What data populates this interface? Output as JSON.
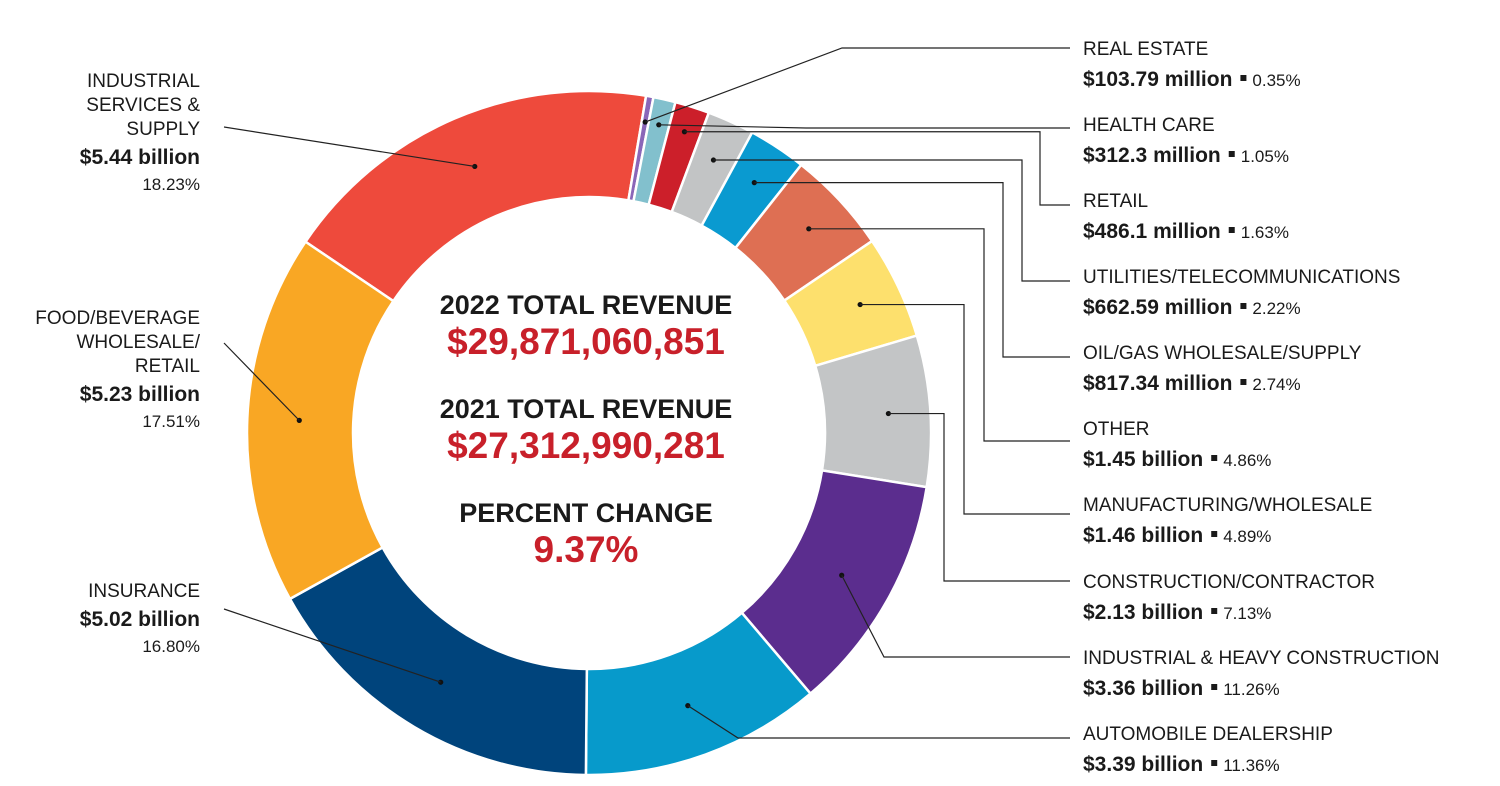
{
  "center": {
    "rev2022_label": "2022 TOTAL REVENUE",
    "rev2022_value": "$29,871,060,851",
    "rev2021_label": "2021 TOTAL REVENUE",
    "rev2021_value": "$27,312,990,281",
    "change_label": "PERCENT CHANGE",
    "change_value": "9.37%"
  },
  "chart_data": {
    "type": "pie",
    "style": "donut",
    "direction": "clockwise",
    "legend": "none",
    "slices": [
      {
        "name": "INDUSTRIAL SERVICES & SUPPLY",
        "name_lines": [
          "INDUSTRIAL",
          "SERVICES &",
          "SUPPLY"
        ],
        "value_text": "$5.44 billion",
        "percent": 18.23,
        "percent_text": "18.23%",
        "color": "#ee4a3c"
      },
      {
        "name": "REAL ESTATE",
        "value_text": "$103.79 million",
        "percent": 0.35,
        "percent_text": "0.35%",
        "color": "#8a66b8"
      },
      {
        "name": "HEALTH CARE",
        "value_text": "$312.3 million",
        "percent": 1.05,
        "percent_text": "1.05%",
        "color": "#82c0cd"
      },
      {
        "name": "RETAIL",
        "value_text": "$486.1 million",
        "percent": 1.63,
        "percent_text": "1.63%",
        "color": "#cc1f2a"
      },
      {
        "name": "UTILITIES/TELECOMMUNICATIONS",
        "value_text": "$662.59 million",
        "percent": 2.22,
        "percent_text": "2.22%",
        "color": "#c2c4c5"
      },
      {
        "name": "OIL/GAS WHOLESALE/SUPPLY",
        "value_text": "$817.34 million",
        "percent": 2.74,
        "percent_text": "2.74%",
        "color": "#0a9ad0"
      },
      {
        "name": "OTHER",
        "value_text": "$1.45 billion",
        "percent": 4.86,
        "percent_text": "4.86%",
        "color": "#de6f53"
      },
      {
        "name": "MANUFACTURING/WHOLESALE",
        "value_text": "$1.46 billion",
        "percent": 4.89,
        "percent_text": "4.89%",
        "color": "#fde06d"
      },
      {
        "name": "CONSTRUCTION/CONTRACTOR",
        "value_text": "$2.13 billion",
        "percent": 7.13,
        "percent_text": "7.13%",
        "color": "#c3c5c6"
      },
      {
        "name": "INDUSTRIAL & HEAVY CONSTRUCTION",
        "value_text": "$3.36 billion",
        "percent": 11.26,
        "percent_text": "11.26%",
        "color": "#5b2d8e"
      },
      {
        "name": "AUTOMOBILE DEALERSHIP",
        "value_text": "$3.39 billion",
        "percent": 11.36,
        "percent_text": "11.36%",
        "color": "#079acb"
      },
      {
        "name": "INSURANCE",
        "value_text": "$5.02 billion",
        "percent": 16.8,
        "percent_text": "16.80%",
        "color": "#00447c"
      },
      {
        "name": "FOOD/BEVERAGE WHOLESALE/ RETAIL",
        "name_lines": [
          "FOOD/BEVERAGE",
          "WHOLESALE/",
          "RETAIL"
        ],
        "value_text": "$5.23 billion",
        "percent": 17.51,
        "percent_text": "17.51%",
        "color": "#f9a724"
      }
    ]
  }
}
